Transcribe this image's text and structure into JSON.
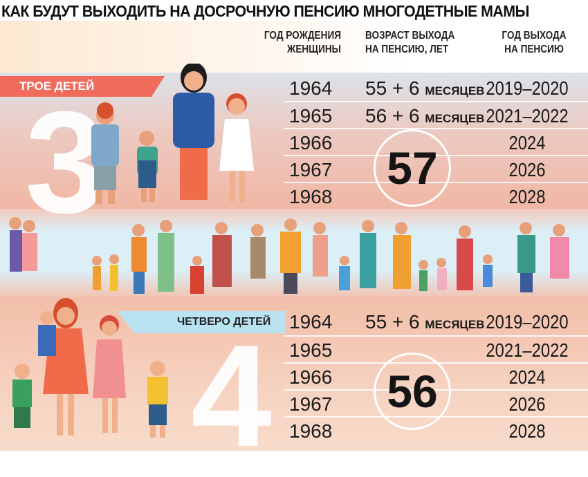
{
  "title": "КАК БУДУТ ВЫХОДИТЬ НА ДОСРОЧНУЮ ПЕНСИЮ МНОГОДЕТНЫЕ МАМЫ",
  "headers": {
    "birth_year": [
      "ГОД РОЖДЕНИЯ",
      "ЖЕНЩИНЫ"
    ],
    "age": [
      "ВОЗРАСТ ВЫХОДА",
      "НА ПЕНСИЮ, ЛЕТ"
    ],
    "retire_year": [
      "ГОД ВЫХОДА",
      "НА ПЕНСИЮ"
    ]
  },
  "sections": [
    {
      "label": "ТРОЕ ДЕТЕЙ",
      "big_number": "3",
      "common_age": "57",
      "rows": [
        {
          "birth": "1964",
          "age": "55 + 6",
          "age_unit": "МЕСЯЦЕВ",
          "retire": "2019–2020"
        },
        {
          "birth": "1965",
          "age": "56 + 6",
          "age_unit": "МЕСЯЦЕВ",
          "retire": "2021–2022"
        },
        {
          "birth": "1966",
          "retire": "2024"
        },
        {
          "birth": "1967",
          "retire": "2026"
        },
        {
          "birth": "1968",
          "retire": "2028"
        }
      ]
    },
    {
      "label": "ЧЕТВЕРО ДЕТЕЙ",
      "big_number": "4",
      "common_age": "56",
      "rows": [
        {
          "birth": "1964",
          "age": "55 + 6",
          "age_unit": "МЕСЯЦЕВ",
          "retire": "2019–2020"
        },
        {
          "birth": "1965",
          "retire": "2021–2022"
        },
        {
          "birth": "1966",
          "retire": "2024"
        },
        {
          "birth": "1967",
          "retire": "2026"
        },
        {
          "birth": "1968",
          "retire": "2028"
        }
      ]
    }
  ],
  "colors": {
    "ribbon_three": "#f06b5c",
    "ribbon_four": "#b9e2f3"
  }
}
